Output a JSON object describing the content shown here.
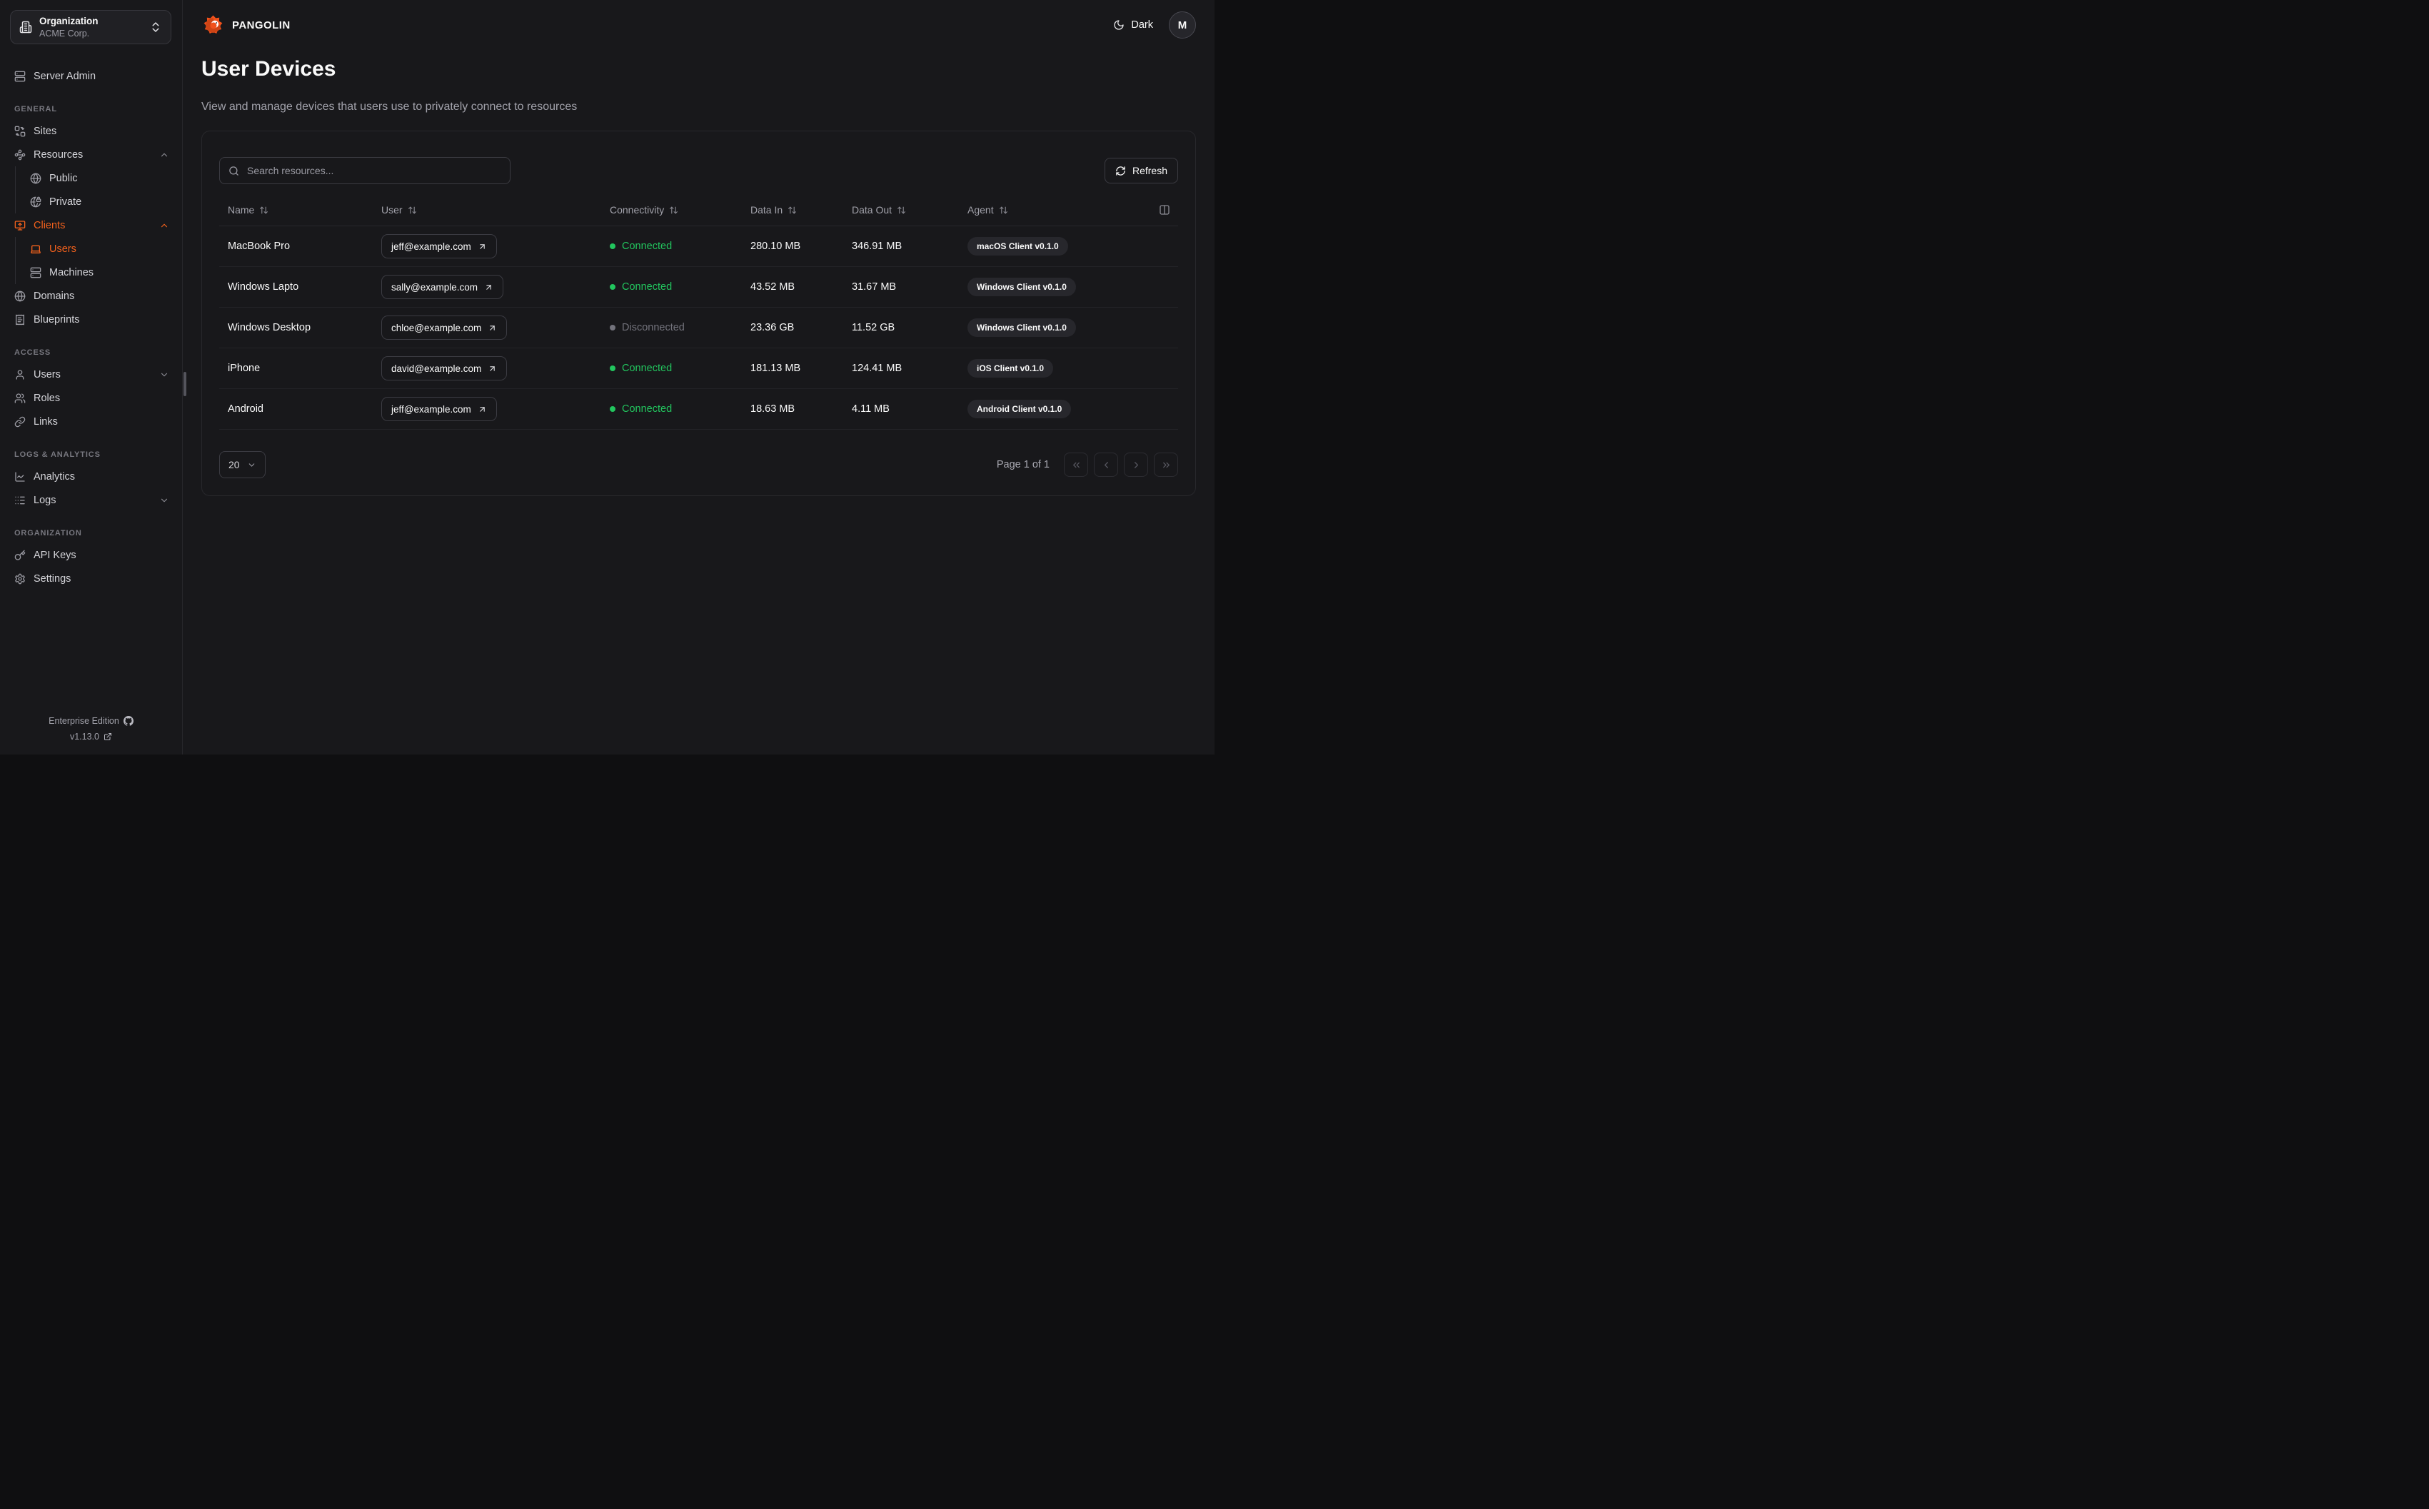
{
  "colors": {
    "accent": "#f3611c",
    "connected": "#22c55e",
    "disconnected": "#73737c"
  },
  "org_selector": {
    "label": "Organization",
    "value": "ACME Corp."
  },
  "sidebar": {
    "standalone": {
      "label": "Server Admin",
      "icon": "server"
    },
    "sections": [
      {
        "label": "GENERAL",
        "items": [
          {
            "label": "Sites",
            "icon": "sites"
          },
          {
            "label": "Resources",
            "icon": "waypoints",
            "chevron": "up"
          },
          {
            "label": "Public",
            "icon": "globe",
            "sub": true
          },
          {
            "label": "Private",
            "icon": "globe-lock",
            "sub": true
          },
          {
            "label": "Clients",
            "icon": "monitor-up",
            "chevron": "up",
            "active": true
          },
          {
            "label": "Users",
            "icon": "laptop",
            "sub": true,
            "active": true
          },
          {
            "label": "Machines",
            "icon": "server",
            "sub": true
          },
          {
            "label": "Domains",
            "icon": "globe"
          },
          {
            "label": "Blueprints",
            "icon": "receipt"
          }
        ]
      },
      {
        "label": "ACCESS",
        "items": [
          {
            "label": "Users",
            "icon": "user",
            "chevron": "down"
          },
          {
            "label": "Roles",
            "icon": "users"
          },
          {
            "label": "Links",
            "icon": "link"
          }
        ]
      },
      {
        "label": "LOGS & ANALYTICS",
        "items": [
          {
            "label": "Analytics",
            "icon": "chart"
          },
          {
            "label": "Logs",
            "icon": "logs",
            "chevron": "down"
          }
        ]
      },
      {
        "label": "ORGANIZATION",
        "items": [
          {
            "label": "API Keys",
            "icon": "key"
          },
          {
            "label": "Settings",
            "icon": "gear"
          }
        ]
      }
    ],
    "footer": {
      "edition": "Enterprise Edition",
      "version": "v1.13.0"
    }
  },
  "topbar": {
    "brand": "PANGOLIN",
    "theme_label": "Dark",
    "avatar_initial": "M"
  },
  "page": {
    "title": "User Devices",
    "subtitle": "View and manage devices that users use to privately connect to resources"
  },
  "toolbar": {
    "search_placeholder": "Search resources...",
    "refresh_label": "Refresh"
  },
  "table": {
    "columns": [
      "Name",
      "User",
      "Connectivity",
      "Data In",
      "Data Out",
      "Agent"
    ],
    "rows": [
      {
        "name": "MacBook Pro",
        "user": "jeff@example.com",
        "connectivity": "Connected",
        "connected": true,
        "data_in": "280.10 MB",
        "data_out": "346.91 MB",
        "agent": "macOS Client v0.1.0"
      },
      {
        "name": "Windows Lapto",
        "user": "sally@example.com",
        "connectivity": "Connected",
        "connected": true,
        "data_in": "43.52 MB",
        "data_out": "31.67 MB",
        "agent": "Windows Client v0.1.0"
      },
      {
        "name": "Windows Desktop",
        "user": "chloe@example.com",
        "connectivity": "Disconnected",
        "connected": false,
        "data_in": "23.36 GB",
        "data_out": "11.52 GB",
        "agent": "Windows Client v0.1.0"
      },
      {
        "name": "iPhone",
        "user": "david@example.com",
        "connectivity": "Connected",
        "connected": true,
        "data_in": "181.13 MB",
        "data_out": "124.41 MB",
        "agent": "iOS Client v0.1.0"
      },
      {
        "name": "Android",
        "user": "jeff@example.com",
        "connectivity": "Connected",
        "connected": true,
        "data_in": "18.63 MB",
        "data_out": "4.11 MB",
        "agent": "Android Client v0.1.0"
      }
    ]
  },
  "pagination": {
    "page_size": "20",
    "page_info": "Page 1 of 1"
  }
}
